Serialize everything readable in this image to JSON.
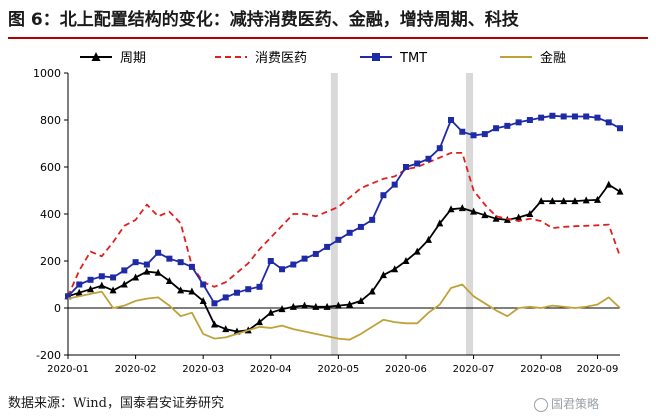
{
  "title": "图 6：北上配置结构的变化：减持消费医药、金融，增持周期、科技",
  "source": "数据来源：Wind，国泰君安证券研究",
  "watermark": "国君策略",
  "colors": {
    "title_rule": "#b00000",
    "shade": "#d9d9d9"
  },
  "chart_data": {
    "type": "line",
    "title": "",
    "xlabel": "",
    "ylabel": "",
    "ylim": [
      -200,
      1000
    ],
    "yticks": [
      -200,
      0,
      200,
      400,
      600,
      800,
      1000
    ],
    "x_tick_labels": [
      "2020-01",
      "2020-02",
      "2020-03",
      "2020-04",
      "2020-05",
      "2020-06",
      "2020-07",
      "2020-08",
      "2020-09"
    ],
    "x_count": 50,
    "x_tick_index": [
      0,
      6,
      12,
      18,
      24,
      30,
      36,
      42,
      47
    ],
    "shaded_index": [
      23.6,
      35.6
    ],
    "grid": false,
    "legend_placement": "top",
    "series": [
      {
        "name": "周期",
        "color": "#000000",
        "style": "solid",
        "marker": "triangle",
        "values": [
          50,
          65,
          80,
          95,
          75,
          100,
          130,
          155,
          150,
          115,
          75,
          70,
          30,
          -70,
          -90,
          -100,
          -95,
          -60,
          -20,
          -5,
          5,
          10,
          5,
          5,
          10,
          15,
          30,
          70,
          140,
          165,
          200,
          240,
          290,
          360,
          420,
          425,
          410,
          395,
          380,
          375,
          385,
          400,
          455,
          455,
          455,
          455,
          458,
          460,
          525,
          495
        ]
      },
      {
        "name": "消费医药",
        "color": "#e0201f",
        "style": "dashed",
        "marker": "none",
        "values": [
          50,
          160,
          240,
          220,
          280,
          350,
          375,
          440,
          390,
          410,
          360,
          180,
          110,
          90,
          110,
          150,
          190,
          250,
          300,
          350,
          400,
          400,
          390,
          410,
          430,
          470,
          510,
          530,
          550,
          560,
          590,
          600,
          620,
          640,
          660,
          660,
          500,
          440,
          390,
          380,
          370,
          380,
          370,
          340,
          345,
          348,
          350,
          352,
          355,
          220
        ]
      },
      {
        "name": "TMT",
        "color": "#1f2aa6",
        "style": "solid",
        "marker": "square",
        "values": [
          50,
          100,
          120,
          135,
          130,
          160,
          195,
          185,
          235,
          210,
          195,
          175,
          100,
          20,
          45,
          65,
          80,
          90,
          200,
          165,
          185,
          210,
          230,
          260,
          290,
          320,
          345,
          375,
          480,
          525,
          600,
          615,
          635,
          680,
          800,
          750,
          735,
          740,
          765,
          775,
          790,
          800,
          810,
          818,
          815,
          815,
          815,
          810,
          790,
          765
        ]
      },
      {
        "name": "金融",
        "color": "#bfa23a",
        "style": "solid",
        "marker": "none",
        "values": [
          40,
          50,
          60,
          70,
          0,
          10,
          30,
          40,
          45,
          10,
          -35,
          -20,
          -110,
          -130,
          -125,
          -110,
          -95,
          -80,
          -85,
          -75,
          -90,
          -100,
          -110,
          -120,
          -130,
          -135,
          -110,
          -80,
          -50,
          -60,
          -65,
          -65,
          -20,
          15,
          85,
          100,
          50,
          20,
          -10,
          -35,
          0,
          5,
          0,
          10,
          5,
          0,
          5,
          15,
          45,
          0
        ]
      }
    ]
  }
}
